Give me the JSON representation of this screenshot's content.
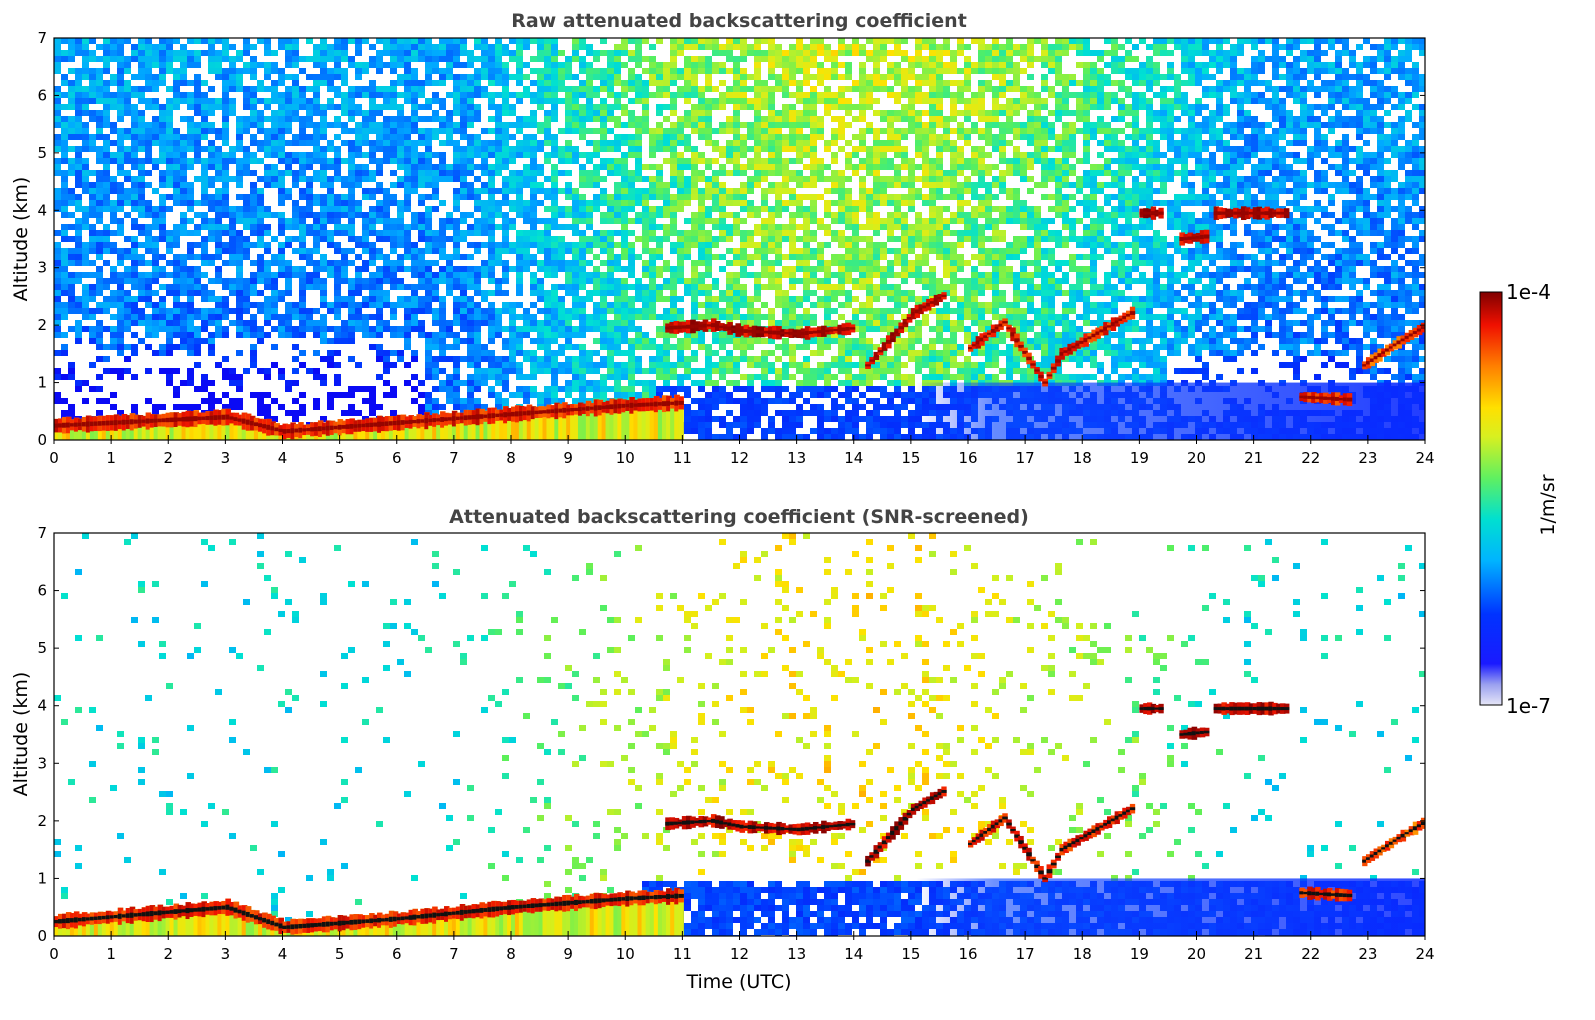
{
  "chart_data": [
    {
      "type": "heatmap",
      "title": "Raw attenuated backscattering coefficient",
      "xlabel": "",
      "ylabel": "Altitude (km)",
      "xlim": [
        0,
        24
      ],
      "ylim": [
        0,
        7
      ],
      "xticks": [
        0,
        1,
        2,
        3,
        4,
        5,
        6,
        7,
        8,
        9,
        10,
        11,
        12,
        13,
        14,
        15,
        16,
        17,
        18,
        19,
        20,
        21,
        22,
        23,
        24
      ],
      "yticks": [
        0,
        1,
        2,
        3,
        4,
        5,
        6,
        7
      ],
      "colorscale": "jet",
      "color_range": [
        "1e-7",
        "1e-4"
      ],
      "colorbar_label": "1/m/sr",
      "features": [
        {
          "kind": "boundary layer",
          "points": [
            [
              0,
              0.25
            ],
            [
              3,
              0.4
            ],
            [
              4,
              0.15
            ],
            [
              6,
              0.3
            ],
            [
              8,
              0.45
            ],
            [
              10,
              0.6
            ],
            [
              11,
              0.65
            ]
          ],
          "level": 0.95
        },
        {
          "kind": "cloud",
          "points": [
            [
              10.7,
              1.95
            ],
            [
              11.5,
              2.0
            ],
            [
              12,
              1.9
            ],
            [
              13,
              1.85
            ],
            [
              14,
              1.95
            ]
          ],
          "level": 1.0
        },
        {
          "kind": "cloud",
          "points": [
            [
              14.2,
              1.3
            ],
            [
              15,
              2.2
            ],
            [
              15.6,
              2.55
            ]
          ],
          "level": 1.0
        },
        {
          "kind": "cloud",
          "points": [
            [
              16,
              1.6
            ],
            [
              16.6,
              2.05
            ],
            [
              17.3,
              1.0
            ],
            [
              17.6,
              1.5
            ],
            [
              18.3,
              1.9
            ],
            [
              18.9,
              2.25
            ]
          ],
          "level": 0.95
        },
        {
          "kind": "cloud",
          "points": [
            [
              19.0,
              3.95
            ],
            [
              19.4,
              3.95
            ]
          ],
          "level": 1.0
        },
        {
          "kind": "cloud",
          "points": [
            [
              19.7,
              3.5
            ],
            [
              20.2,
              3.55
            ]
          ],
          "level": 1.0
        },
        {
          "kind": "cloud",
          "points": [
            [
              20.3,
              3.95
            ],
            [
              21.6,
              3.95
            ]
          ],
          "level": 1.0
        },
        {
          "kind": "cloud",
          "points": [
            [
              21.8,
              0.75
            ],
            [
              22.7,
              0.7
            ]
          ],
          "level": 0.95
        },
        {
          "kind": "cloud",
          "points": [
            [
              22.9,
              1.3
            ],
            [
              23.5,
              1.7
            ],
            [
              24,
              2.0
            ]
          ],
          "level": 0.9
        }
      ]
    },
    {
      "type": "heatmap",
      "title": "Attenuated backscattering coefficient (SNR-screened)",
      "xlabel": "Time (UTC)",
      "ylabel": "Altitude (km)",
      "xlim": [
        0,
        24
      ],
      "ylim": [
        0,
        7
      ],
      "xticks": [
        0,
        1,
        2,
        3,
        4,
        5,
        6,
        7,
        8,
        9,
        10,
        11,
        12,
        13,
        14,
        15,
        16,
        17,
        18,
        19,
        20,
        21,
        22,
        23,
        24
      ],
      "yticks": [
        0,
        1,
        2,
        3,
        4,
        5,
        6,
        7
      ],
      "colorscale": "jet",
      "color_range": [
        "1e-7",
        "1e-4"
      ],
      "colorbar_label": "1/m/sr",
      "features": [
        {
          "kind": "boundary layer",
          "points": [
            [
              0,
              0.25
            ],
            [
              3,
              0.5
            ],
            [
              4,
              0.15
            ],
            [
              6,
              0.3
            ],
            [
              8,
              0.5
            ],
            [
              10,
              0.65
            ],
            [
              11,
              0.7
            ]
          ],
          "level": 0.95
        },
        {
          "kind": "cloud",
          "points": [
            [
              10.7,
              1.95
            ],
            [
              11.5,
              2.0
            ],
            [
              12,
              1.9
            ],
            [
              13,
              1.85
            ],
            [
              14,
              1.95
            ]
          ],
          "level": 1.0
        },
        {
          "kind": "cloud",
          "points": [
            [
              14.2,
              1.3
            ],
            [
              15,
              2.2
            ],
            [
              15.6,
              2.55
            ]
          ],
          "level": 1.0
        },
        {
          "kind": "cloud",
          "points": [
            [
              16,
              1.6
            ],
            [
              16.6,
              2.05
            ],
            [
              17.3,
              1.0
            ],
            [
              17.6,
              1.5
            ],
            [
              18.3,
              1.9
            ],
            [
              18.9,
              2.25
            ]
          ],
          "level": 0.95
        },
        {
          "kind": "cloud",
          "points": [
            [
              19.0,
              3.95
            ],
            [
              19.4,
              3.95
            ]
          ],
          "level": 1.0
        },
        {
          "kind": "cloud",
          "points": [
            [
              19.7,
              3.5
            ],
            [
              20.2,
              3.55
            ]
          ],
          "level": 1.0
        },
        {
          "kind": "cloud",
          "points": [
            [
              20.3,
              3.95
            ],
            [
              21.6,
              3.95
            ]
          ],
          "level": 1.0
        },
        {
          "kind": "cloud",
          "points": [
            [
              21.8,
              0.75
            ],
            [
              22.7,
              0.7
            ]
          ],
          "level": 0.95
        },
        {
          "kind": "cloud",
          "points": [
            [
              22.9,
              1.3
            ],
            [
              23.5,
              1.7
            ],
            [
              24,
              2.0
            ]
          ],
          "level": 0.9
        }
      ]
    }
  ]
}
